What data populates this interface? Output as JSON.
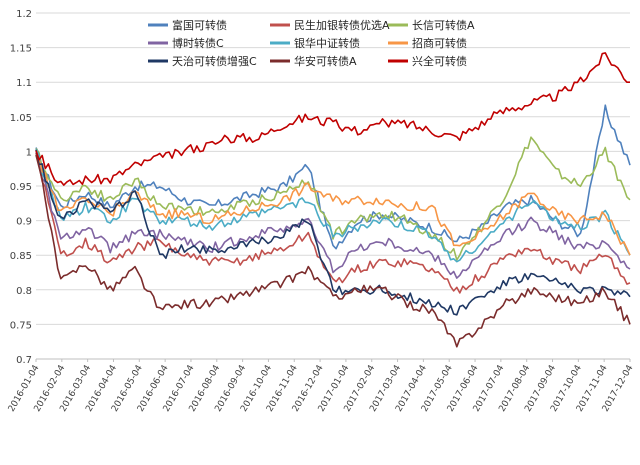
{
  "chart_data": {
    "type": "line",
    "title": "",
    "xlabel": "",
    "ylabel": "",
    "ylim": [
      0.7,
      1.2
    ],
    "y_ticks": [
      "0.7",
      "0.75",
      "0.8",
      "0.85",
      "0.9",
      "0.95",
      "1",
      "1.05",
      "1.1",
      "1.15",
      "1.2"
    ],
    "x_ticks": [
      "2016-01-04",
      "2016-02-04",
      "2016-03-04",
      "2016-04-04",
      "2016-05-04",
      "2016-06-04",
      "2016-07-04",
      "2016-08-04",
      "2016-09-04",
      "2016-10-04",
      "2016-11-04",
      "2016-12-04",
      "2017-01-04",
      "2017-02-04",
      "2017-03-04",
      "2017-04-04",
      "2017-05-04",
      "2017-06-04",
      "2017-07-04",
      "2017-08-04",
      "2017-09-04",
      "2017-10-04",
      "2017-11-04",
      "2017-12-04"
    ],
    "grid": "horizontal",
    "legend_position": "top",
    "series": [
      {
        "name": "富国可转债",
        "color": "#4f81bd",
        "values": [
          1.0,
          0.92,
          0.94,
          0.92,
          0.95,
          0.95,
          0.93,
          0.92,
          0.93,
          0.94,
          0.95,
          0.98,
          0.86,
          0.9,
          0.91,
          0.9,
          0.89,
          0.87,
          0.89,
          0.92,
          0.93,
          0.9,
          0.88,
          1.06,
          0.98
        ]
      },
      {
        "name": "民生加银转债优选A",
        "color": "#c0504d",
        "values": [
          1.0,
          0.85,
          0.87,
          0.84,
          0.86,
          0.87,
          0.85,
          0.84,
          0.84,
          0.85,
          0.86,
          0.88,
          0.81,
          0.83,
          0.84,
          0.84,
          0.83,
          0.8,
          0.82,
          0.85,
          0.86,
          0.84,
          0.83,
          0.85,
          0.81
        ]
      },
      {
        "name": "长信可转债A",
        "color": "#9bbb59",
        "values": [
          1.0,
          0.93,
          0.95,
          0.93,
          0.96,
          0.92,
          0.92,
          0.91,
          0.92,
          0.93,
          0.94,
          0.96,
          0.88,
          0.9,
          0.91,
          0.9,
          0.88,
          0.85,
          0.89,
          0.94,
          1.02,
          0.97,
          0.95,
          1.0,
          0.93
        ]
      },
      {
        "name": "博时转债C",
        "color": "#8064a2",
        "values": [
          1.0,
          0.87,
          0.89,
          0.86,
          0.88,
          0.88,
          0.87,
          0.86,
          0.87,
          0.88,
          0.89,
          0.9,
          0.83,
          0.86,
          0.87,
          0.86,
          0.85,
          0.82,
          0.85,
          0.88,
          0.9,
          0.88,
          0.86,
          0.87,
          0.83
        ]
      },
      {
        "name": "银华中证转债",
        "color": "#4bacc6",
        "values": [
          1.0,
          0.9,
          0.92,
          0.9,
          0.93,
          0.9,
          0.9,
          0.89,
          0.9,
          0.91,
          0.92,
          0.93,
          0.88,
          0.89,
          0.9,
          0.89,
          0.88,
          0.84,
          0.87,
          0.9,
          0.93,
          0.9,
          0.89,
          0.91,
          0.85
        ]
      },
      {
        "name": "招商可转债",
        "color": "#f79646",
        "values": [
          1.0,
          0.91,
          0.93,
          0.91,
          0.94,
          0.91,
          0.91,
          0.9,
          0.91,
          0.92,
          0.93,
          0.95,
          0.93,
          0.93,
          0.93,
          0.92,
          0.92,
          0.86,
          0.88,
          0.91,
          0.94,
          0.91,
          0.9,
          0.91,
          0.85
        ]
      },
      {
        "name": "天治可转债增强C",
        "color": "#1f3864",
        "values": [
          1.0,
          0.9,
          0.93,
          0.91,
          0.94,
          0.85,
          0.86,
          0.86,
          0.86,
          0.87,
          0.88,
          0.9,
          0.8,
          0.8,
          0.8,
          0.79,
          0.78,
          0.77,
          0.79,
          0.81,
          0.82,
          0.81,
          0.8,
          0.8,
          0.79
        ]
      },
      {
        "name": "华安可转债A",
        "color": "#7b2c2c",
        "values": [
          1.0,
          0.81,
          0.84,
          0.8,
          0.83,
          0.77,
          0.78,
          0.78,
          0.79,
          0.8,
          0.81,
          0.83,
          0.79,
          0.8,
          0.8,
          0.78,
          0.77,
          0.72,
          0.75,
          0.78,
          0.8,
          0.79,
          0.78,
          0.8,
          0.75
        ]
      },
      {
        "name": "兴全可转债",
        "color": "#c00000",
        "values": [
          1.0,
          0.95,
          0.96,
          0.96,
          0.98,
          0.99,
          1.0,
          1.01,
          1.02,
          1.02,
          1.04,
          1.05,
          1.04,
          1.03,
          1.04,
          1.04,
          1.03,
          1.02,
          1.04,
          1.06,
          1.07,
          1.08,
          1.1,
          1.14,
          1.1
        ]
      }
    ]
  }
}
